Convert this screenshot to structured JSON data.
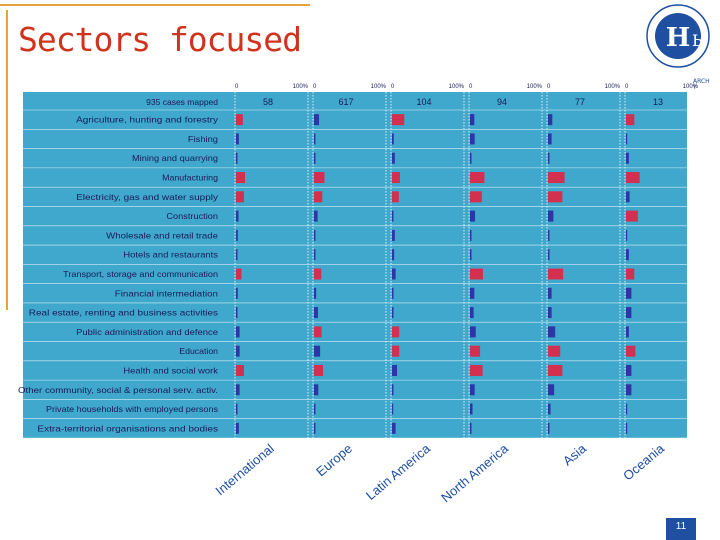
{
  "slide": {
    "title": "Sectors focused",
    "page_number": "11",
    "logo_fragment": "ARCH\nY"
  },
  "chart_data": {
    "type": "bar",
    "title": "",
    "scale_ticks": [
      "0",
      "100%"
    ],
    "header_label": "935 cases mapped",
    "categories": [
      "Agriculture, hunting and forestry",
      "Fishing",
      "Mining and quarrying",
      "Manufacturing",
      "Electricity, gas and water supply",
      "Construction",
      "Wholesale and retail trade",
      "Hotels and restaurants",
      "Transport, storage and communication",
      "Financial intermediation",
      "Real estate, renting and business activities",
      "Public administration and defence",
      "Education",
      "Health and social work",
      "Other community, social & personal serv. activ.",
      "Private households with employed persons",
      "Extra-territorial organisations and bodies"
    ],
    "xlim": [
      0,
      100
    ],
    "colors": {
      "background": "#3fa8cc",
      "highlight": "#d32f4f",
      "default": "#2d36a8",
      "gridline": "#ffffff"
    },
    "panels": [
      {
        "region": "International",
        "count": 58,
        "values": [
          19,
          8,
          2,
          25,
          22,
          7,
          5,
          2,
          15,
          5,
          4,
          10,
          10,
          22,
          10,
          2,
          8
        ],
        "highlighted": [
          true,
          false,
          false,
          true,
          true,
          false,
          false,
          false,
          true,
          false,
          false,
          false,
          false,
          true,
          false,
          false,
          false
        ]
      },
      {
        "region": "Europe",
        "count": 617,
        "values": [
          14,
          2,
          2,
          29,
          23,
          10,
          4,
          2,
          20,
          6,
          11,
          21,
          17,
          25,
          12,
          1,
          2
        ],
        "highlighted": [
          false,
          false,
          false,
          true,
          true,
          false,
          false,
          false,
          true,
          false,
          false,
          true,
          false,
          true,
          false,
          false,
          false
        ]
      },
      {
        "region": "Latin America",
        "count": 104,
        "values": [
          34,
          5,
          8,
          22,
          19,
          3,
          8,
          6,
          10,
          1,
          4,
          20,
          20,
          14,
          4,
          0,
          10
        ],
        "highlighted": [
          true,
          false,
          false,
          true,
          true,
          false,
          false,
          false,
          false,
          false,
          false,
          true,
          true,
          false,
          false,
          false,
          false
        ]
      },
      {
        "region": "North America",
        "count": 94,
        "values": [
          12,
          13,
          3,
          40,
          33,
          14,
          4,
          2,
          36,
          12,
          10,
          16,
          28,
          35,
          13,
          7,
          4
        ],
        "highlighted": [
          false,
          false,
          false,
          true,
          true,
          false,
          false,
          false,
          true,
          false,
          false,
          false,
          true,
          true,
          false,
          false,
          false
        ]
      },
      {
        "region": "Asia",
        "count": 77,
        "values": [
          12,
          10,
          3,
          46,
          40,
          15,
          3,
          2,
          42,
          10,
          10,
          20,
          34,
          40,
          17,
          7,
          2
        ],
        "highlighted": [
          false,
          false,
          false,
          true,
          true,
          false,
          false,
          false,
          true,
          false,
          false,
          false,
          true,
          true,
          false,
          false,
          false
        ]
      },
      {
        "region": "Oceania",
        "count": 13,
        "values": [
          23,
          0,
          8,
          38,
          10,
          33,
          0,
          8,
          23,
          15,
          15,
          8,
          26,
          15,
          15,
          0,
          0
        ],
        "highlighted": [
          true,
          false,
          false,
          true,
          false,
          true,
          false,
          false,
          true,
          false,
          false,
          false,
          true,
          false,
          false,
          false,
          false
        ]
      }
    ]
  }
}
